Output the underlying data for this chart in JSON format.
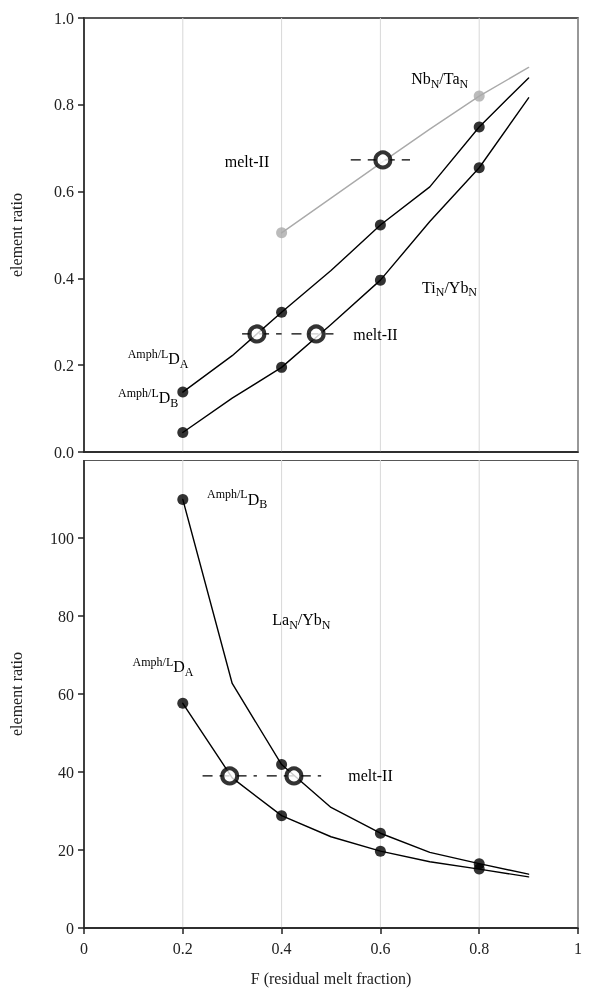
{
  "chart_data": [
    {
      "type": "line",
      "ylabel": "element ratio",
      "xlim": [
        0,
        1
      ],
      "xticks": [
        0,
        0.2,
        0.4,
        0.6,
        0.8,
        1
      ],
      "ylim": [
        0,
        1
      ],
      "yticks": [
        {
          "value": 0,
          "label": "0.0"
        },
        {
          "value": 0.2,
          "label": "0.2"
        },
        {
          "value": 0.4,
          "label": "0.4"
        },
        {
          "value": 0.6,
          "label": "0.6"
        },
        {
          "value": 0.8,
          "label": "0.8"
        },
        {
          "value": 1,
          "label": "1.0"
        }
      ],
      "grid": "x",
      "tick_labels": "y",
      "series": [
        {
          "color": "#aaaaaa",
          "marker": "none",
          "x": [
            0.4,
            0.5,
            0.6,
            0.7,
            0.8,
            0.9
          ],
          "values": [
            0.505,
            0.585,
            0.665,
            0.744,
            0.82,
            0.886
          ]
        },
        {
          "type": "scatter",
          "color": "#aaaaaa",
          "marker": "circle",
          "x": [
            0.4,
            0.8
          ],
          "values": [
            0.505,
            0.82
          ]
        },
        {
          "color": "#000000",
          "marker": "none",
          "x": [
            0.2,
            0.3,
            0.4,
            0.5,
            0.6,
            0.7,
            0.8,
            0.9
          ],
          "values": [
            0.138,
            0.222,
            0.322,
            0.418,
            0.523,
            0.611,
            0.749,
            0.862
          ]
        },
        {
          "type": "scatter",
          "color": "#000000",
          "marker": "circle",
          "x": [
            0.2,
            0.4,
            0.6,
            0.8
          ],
          "values": [
            0.138,
            0.322,
            0.523,
            0.749
          ]
        },
        {
          "color": "#000000",
          "marker": "none",
          "x": [
            0.2,
            0.3,
            0.4,
            0.5,
            0.6,
            0.7,
            0.8,
            0.9
          ],
          "values": [
            0.045,
            0.124,
            0.195,
            0.294,
            0.396,
            0.531,
            0.655,
            0.816
          ]
        },
        {
          "type": "scatter",
          "color": "#000000",
          "marker": "circle",
          "x": [
            0.2,
            0.4,
            0.6,
            0.8
          ],
          "values": [
            0.045,
            0.195,
            0.396,
            0.655
          ]
        },
        {
          "type": "scatter",
          "color": "#000000",
          "marker": "circle",
          "line_style": "dashed",
          "x": [
            0.35,
            0.47,
            0.605
          ],
          "values": [
            0.272,
            0.272,
            0.673
          ],
          "xerrors": [
            [
              0.32,
              0.4
            ],
            [
              0.42,
              0.505
            ],
            [
              0.54,
              0.66
            ]
          ]
        }
      ],
      "annotations": [
        "Nb$_{N}$/Ta$_{N}$",
        "melt-II",
        "Ti$_{N}$/Yb$_{N}$",
        "melt-II",
        "$^{Amph/L}$D$_{A}$",
        "$^{Amph/L}$D$_{B}$"
      ]
    },
    {
      "type": "line",
      "xlabel": "F (residual melt fraction)",
      "ylabel": "element ratio",
      "xlim": [
        0,
        1
      ],
      "xticks": [
        0,
        0.2,
        0.4,
        0.6,
        0.8,
        1
      ],
      "ylim": [
        0,
        120
      ],
      "yticks": [
        0,
        20,
        40,
        60,
        80,
        100
      ],
      "grid": "x",
      "series": [
        {
          "color": "#000000",
          "marker": "none",
          "x": [
            0.2,
            0.3,
            0.4,
            0.5,
            0.6,
            0.7,
            0.8,
            0.9
          ],
          "values": [
            109.9,
            62.7,
            41.9,
            30.9,
            24.3,
            19.4,
            16.5,
            13.8
          ]
        },
        {
          "type": "scatter",
          "color": "#000000",
          "marker": "circle",
          "x": [
            0.2,
            0.4,
            0.6,
            0.8
          ],
          "values": [
            109.9,
            41.9,
            24.3,
            16.5
          ]
        },
        {
          "color": "#000000",
          "marker": "none",
          "x": [
            0.2,
            0.3,
            0.4,
            0.5,
            0.6,
            0.7,
            0.8,
            0.9
          ],
          "values": [
            57.6,
            38.5,
            28.8,
            23.4,
            19.7,
            17.0,
            15.1,
            13.1
          ]
        },
        {
          "type": "scatter",
          "color": "#000000",
          "marker": "circle",
          "x": [
            0.2,
            0.4,
            0.6,
            0.8
          ],
          "values": [
            57.6,
            28.8,
            19.7,
            15.1
          ]
        },
        {
          "type": "scatter",
          "color": "#000000",
          "marker": "circle",
          "line_style": "dashed",
          "x": [
            0.295,
            0.425
          ],
          "values": [
            39,
            39
          ],
          "xerrors": [
            [
              0.24,
              0.35
            ],
            [
              0.37,
              0.48
            ]
          ]
        }
      ],
      "annotations": [
        "$^{Amph/L}$D$_{B}$",
        "La$_{N}$/Yb$_{N}$",
        "$^{Amph/L}$D$_{A}$",
        "melt-II"
      ]
    }
  ]
}
